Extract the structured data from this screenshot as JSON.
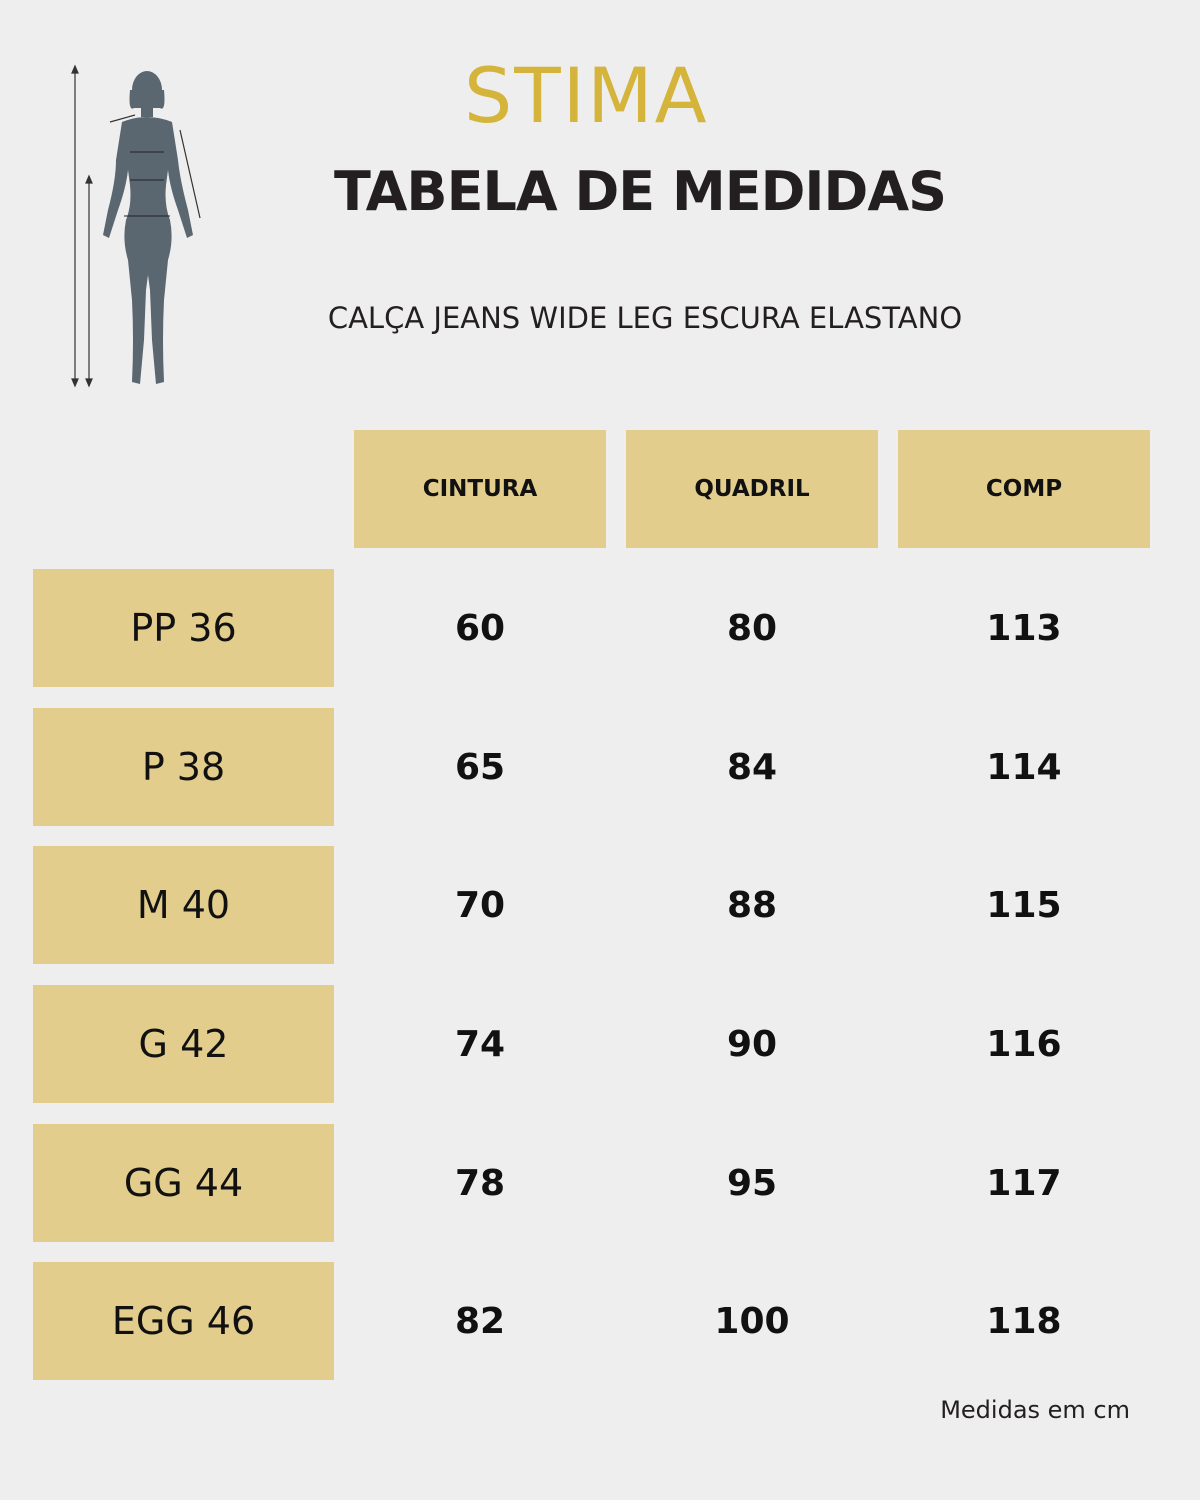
{
  "brand": "STIMA",
  "title": "TABELA DE MEDIDAS",
  "subtitle": "CALÇA JEANS WIDE LEG ESCURA ELASTANO",
  "columns": [
    "CINTURA",
    "QUADRIL",
    "COMP"
  ],
  "rows": [
    {
      "size": "PP 36",
      "values": [
        "60",
        "80",
        "113"
      ]
    },
    {
      "size": "P 38",
      "values": [
        "65",
        "84",
        "114"
      ]
    },
    {
      "size": "M 40",
      "values": [
        "70",
        "88",
        "115"
      ]
    },
    {
      "size": "G 42",
      "values": [
        "74",
        "90",
        "116"
      ]
    },
    {
      "size": "GG 44",
      "values": [
        "78",
        "95",
        "117"
      ]
    },
    {
      "size": "EGG 46",
      "values": [
        "82",
        "100",
        "118"
      ]
    }
  ],
  "footer": "Medidas em cm",
  "colors": {
    "accent": "#d4b43a",
    "cell": "#e2cd8c",
    "figure": "#5a6670"
  },
  "icons": {
    "figure": "female-body-measurement-icon"
  }
}
